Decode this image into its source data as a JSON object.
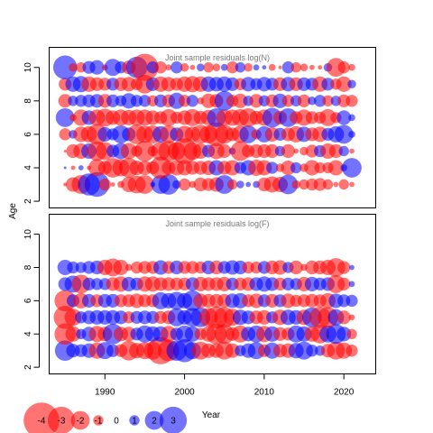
{
  "chart_data": {
    "type": "scatter",
    "subtype": "bubble",
    "xlabel": "Year",
    "ylabel": "Age",
    "x_ticks": [
      1990,
      2000,
      2010,
      2020
    ],
    "y_ticks": [
      2,
      4,
      6,
      8,
      10
    ],
    "xlim": [
      1983,
      2024
    ],
    "positive_color": "#0000ff",
    "negative_color": "#ff0000",
    "years": [
      1985,
      1986,
      1987,
      1988,
      1989,
      1990,
      1991,
      1992,
      1993,
      1994,
      1995,
      1996,
      1997,
      1998,
      1999,
      2000,
      2001,
      2002,
      2003,
      2004,
      2005,
      2006,
      2007,
      2008,
      2009,
      2010,
      2011,
      2012,
      2013,
      2014,
      2015,
      2016,
      2017,
      2018,
      2019,
      2020,
      2021
    ],
    "legend": {
      "values": [
        -4,
        -3,
        -2,
        -1,
        0,
        1,
        2,
        3
      ],
      "labels": [
        "-4",
        "-3",
        "-2",
        "-1",
        "0",
        "1",
        "2",
        "3"
      ]
    },
    "panels": [
      {
        "title": "Joint sample residuals log(N)",
        "ylim": [
          1.6,
          11.2
        ],
        "ages": [
          3,
          4,
          5,
          6,
          7,
          8,
          9,
          10
        ],
        "residuals": [
          [
            -0.2,
            -1.5,
            -2.0,
            2.4,
            2.7,
            -1.2,
            -0.3,
            -0.6,
            -1.6,
            -1.9,
            -2.0,
            0.4,
            2.0,
            2.2,
            0.8,
            -1.2,
            -0.6,
            -1.4,
            -1.3,
            -1.5,
            2.0,
            -1.0,
            0.7,
            0.4,
            0.6,
            -1.4,
            -1.7,
            -1.6,
            2.1,
            -0.8,
            -1.0,
            -1.2,
            -1.3,
            -1.0,
            -0.4,
            -1.0,
            -0.4
          ],
          [
            0.1,
            -0.3,
            0.4,
            -0.3,
            -1.8,
            -1.4,
            -2.1,
            -1.8,
            -2.1,
            -1.5,
            -1.5,
            -1.3,
            -2.4,
            -1.4,
            -1.6,
            -1.6,
            -1.4,
            -1.4,
            -1.5,
            1.6,
            -1.4,
            -1.6,
            1.2,
            1.6,
            -1.7,
            -1.6,
            1.2,
            -0.8,
            -1.5,
            1.1,
            -0.8,
            -1.6,
            -1.1,
            -1.1,
            -1.6,
            0.6,
            2.1
          ],
          [
            -0.1,
            -1.4,
            -1.6,
            1.6,
            -2.1,
            -1.9,
            1.3,
            1.7,
            -1.7,
            -1.1,
            -2.2,
            -1.0,
            -2.0,
            -2.2,
            -1.9,
            -2.8,
            -1.9,
            -1.6,
            1.3,
            -1.7,
            -1.4,
            0.6,
            -2.1,
            -1.3,
            -1.4,
            -1.4,
            -1.4,
            1.0,
            -1.4,
            -0.4,
            -0.8,
            -1.3,
            1.2,
            -1.6,
            -1.4,
            1.0,
            -0.4
          ],
          [
            -1.2,
            0.8,
            -1.6,
            -1.7,
            -2.2,
            1.5,
            1.2,
            1.9,
            1.4,
            -2.1,
            -1.8,
            -1.9,
            1.7,
            -1.9,
            1.4,
            -1.8,
            -1.6,
            -2.0,
            -1.9,
            -2.6,
            -2.0,
            -1.4,
            -1.8,
            1.9,
            -1.0,
            1.7,
            -1.5,
            1.3,
            -1.4,
            -1.7,
            1.6,
            -1.4,
            -1.6,
            1.3,
            1.7,
            2.0,
            0.6
          ],
          [
            2.0,
            -0.6,
            -1.7,
            1.5,
            -1.7,
            -1.9,
            -1.5,
            -1.7,
            -1.6,
            -1.7,
            -1.7,
            -1.5,
            -1.3,
            -1.8,
            -1.2,
            -1.5,
            -1.8,
            -1.4,
            -1.6,
            2.0,
            -1.7,
            -1.7,
            -1.8,
            -2.0,
            -1.4,
            -1.7,
            2.1,
            -1.4,
            2.0,
            -1.3,
            -1.7,
            -1.3,
            -1.2,
            -1.8,
            -1.1,
            1.5,
            0.6
          ],
          [
            -1.4,
            1.0,
            1.2,
            1.3,
            1.4,
            -1.4,
            1.3,
            1.1,
            1.6,
            1.2,
            1.2,
            -1.1,
            1.3,
            -1.3,
            1.7,
            -1.2,
            1.2,
            -0.6,
            -1.5,
            -1.4,
            2.1,
            -1.2,
            -1.5,
            1.0,
            -1.4,
            1.1,
            -1.3,
            1.5,
            -1.2,
            1.1,
            -1.3,
            0.8,
            1.2,
            -1.1,
            1.0,
            -1.3,
            -1.2
          ],
          [
            -1.3,
            1.6,
            1.7,
            -1.6,
            -1.4,
            -1.3,
            1.3,
            -1.4,
            -1.5,
            -1.2,
            -2.0,
            1.4,
            -1.6,
            -1.5,
            -1.3,
            -1.6,
            -1.7,
            -1.6,
            1.6,
            1.5,
            1.6,
            1.4,
            -1.2,
            1.5,
            1.2,
            1.5,
            1.3,
            -1.4,
            1.5,
            -1.4,
            1.4,
            1.3,
            -1.6,
            1.3,
            -1.1,
            -1.6,
            0.8
          ],
          [
            2.6,
            -0.8,
            -1.0,
            1.3,
            1.5,
            -0.5,
            1.8,
            1.2,
            -1.4,
            2.3,
            -3.0,
            1.2,
            -1.2,
            -0.5,
            1.2,
            -0.8,
            -0.4,
            0.7,
            -1.0,
            -0.7,
            0.6,
            -1.2,
            1.0,
            -0.8,
            0.5,
            0.3,
            -0.6,
            -0.2,
            1.2,
            -1.0,
            -0.7,
            -0.4,
            -0.3,
            0.8,
            -2.0,
            -1.2,
            -0.6
          ]
        ]
      },
      {
        "title": "Joint sample residuals log(F)",
        "ylim": [
          1.6,
          11.2
        ],
        "ages": [
          3,
          4,
          5,
          6,
          7,
          8
        ],
        "residuals": [
          [
            2.2,
            1.4,
            1.3,
            1.5,
            -1.7,
            1.8,
            1.3,
            -1.3,
            -2.1,
            -1.6,
            -1.8,
            -1.9,
            -3.0,
            -2.3,
            2.2,
            2.5,
            1.8,
            -1.9,
            -1.5,
            -1.5,
            -1.9,
            -1.5,
            1.1,
            1.5,
            1.8,
            -1.3,
            1.7,
            -1.4,
            -1.5,
            1.6,
            1.9,
            1.2,
            1.0,
            -1.4,
            -1.9,
            -1.7,
            -1.2
          ],
          [
            -2.3,
            -1.6,
            1.0,
            1.5,
            -1.7,
            -1.5,
            2.2,
            -1.5,
            -1.5,
            1.3,
            1.8,
            1.6,
            1.6,
            -1.7,
            1.3,
            1.8,
            1.6,
            -1.2,
            -1.6,
            -2.2,
            -2.1,
            -1.4,
            -1.8,
            1.5,
            1.8,
            -1.7,
            1.6,
            -1.4,
            -1.3,
            1.8,
            1.6,
            -1.6,
            -2.0,
            1.8,
            2.1,
            1.5,
            -1.0
          ],
          [
            -2.5,
            -1.8,
            1.2,
            1.4,
            1.5,
            1.5,
            1.5,
            1.4,
            -1.2,
            1.3,
            1.4,
            1.3,
            -1.3,
            -1.4,
            1.9,
            1.5,
            2.0,
            2.1,
            -2.0,
            -2.4,
            -2.2,
            -1.8,
            1.6,
            1.4,
            -1.4,
            -1.5,
            1.2,
            -1.6,
            1.6,
            1.5,
            -1.6,
            2.1,
            -2.3,
            -2.2,
            1.7,
            -1.4,
            -0.5
          ],
          [
            -2.3,
            1.3,
            -1.6,
            1.4,
            -1.3,
            1.4,
            1.4,
            -1.3,
            -1.3,
            -1.5,
            -1.3,
            -1.3,
            1.8,
            1.6,
            1.9,
            1.6,
            2.2,
            -1.5,
            -1.4,
            -1.4,
            -1.4,
            1.5,
            1.6,
            -1.3,
            -1.5,
            1.3,
            -1.4,
            1.3,
            -1.5,
            -1.2,
            -1.3,
            -1.4,
            -1.3,
            -1.6,
            1.5,
            1.3,
            1.2
          ],
          [
            1.4,
            1.8,
            -2.0,
            1.3,
            1.2,
            1.2,
            -1.4,
            -1.6,
            1.5,
            1.3,
            -1.6,
            -1.6,
            -1.4,
            -1.4,
            -1.3,
            -1.3,
            1.4,
            -1.5,
            -1.4,
            -1.4,
            -1.5,
            1.3,
            -1.3,
            -1.4,
            1.4,
            1.6,
            1.4,
            -1.3,
            1.3,
            1.2,
            -1.5,
            1.5,
            1.3,
            1.4,
            -1.9,
            -1.3,
            0.5
          ],
          [
            1.6,
            1.2,
            1.1,
            1.3,
            1.4,
            -1.6,
            -1.9,
            -1.6,
            -0.6,
            -1.2,
            -1.3,
            -1.3,
            1.5,
            -1.3,
            1.4,
            -1.3,
            -1.3,
            -1.2,
            1.4,
            -1.4,
            1.3,
            1.5,
            1.4,
            -1.2,
            -1.2,
            1.3,
            -1.4,
            -1.5,
            1.1,
            -1.4,
            -0.6,
            -1.4,
            -1.4,
            -1.6,
            -2.0,
            -1.3,
            0.4
          ]
        ]
      }
    ]
  }
}
